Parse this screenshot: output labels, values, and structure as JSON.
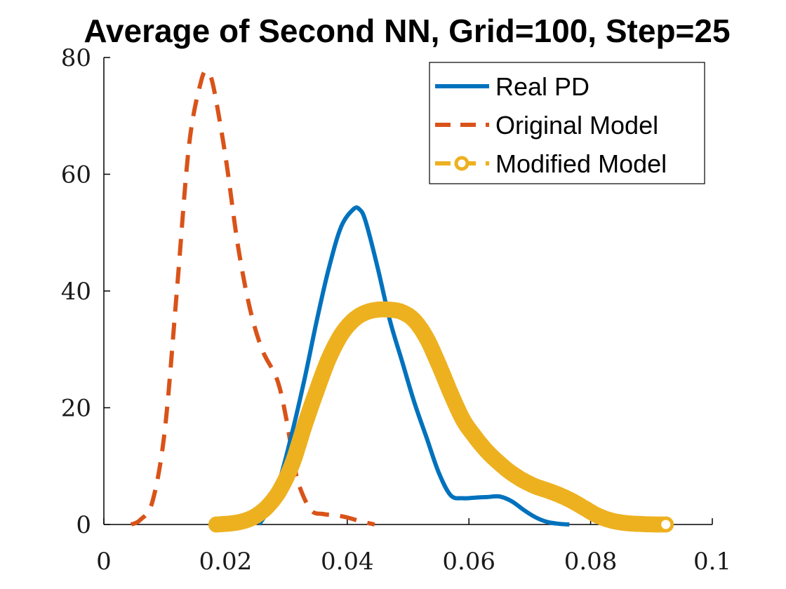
{
  "chart_data": {
    "type": "line",
    "title": "Average of Second NN, Grid=100, Step=25",
    "xlabel": "",
    "ylabel": "",
    "xlim": [
      0,
      0.1
    ],
    "ylim": [
      0,
      80
    ],
    "x_ticks": [
      0,
      0.02,
      0.04,
      0.06,
      0.08,
      0.1
    ],
    "x_tick_labels": [
      "0",
      "0.02",
      "0.04",
      "0.06",
      "0.08",
      "0.1"
    ],
    "y_ticks": [
      0,
      20,
      40,
      60,
      80
    ],
    "y_tick_labels": [
      "0",
      "20",
      "40",
      "60",
      "80"
    ],
    "grid": false,
    "legend_position": "top-right",
    "series": [
      {
        "name": "Real PD",
        "color": "#0072BD",
        "style": "solid",
        "x": [
          0.0255,
          0.027,
          0.029,
          0.031,
          0.033,
          0.035,
          0.037,
          0.039,
          0.041,
          0.042,
          0.043,
          0.045,
          0.047,
          0.049,
          0.051,
          0.053,
          0.055,
          0.057,
          0.059,
          0.061,
          0.063,
          0.065,
          0.067,
          0.069,
          0.071,
          0.073,
          0.075,
          0.0765
        ],
        "y": [
          0,
          2.5,
          8,
          16,
          25,
          35,
          44,
          51,
          54,
          54,
          52,
          44,
          35,
          28,
          21,
          15,
          9,
          5,
          4.5,
          4.6,
          4.7,
          4.8,
          4,
          2.5,
          1.2,
          0.4,
          0.1,
          0
        ]
      },
      {
        "name": "Original Model",
        "color": "#D95319",
        "style": "dashed",
        "x": [
          0.0045,
          0.006,
          0.008,
          0.01,
          0.012,
          0.014,
          0.016,
          0.017,
          0.018,
          0.02,
          0.022,
          0.024,
          0.026,
          0.028,
          0.029,
          0.03,
          0.031,
          0.032,
          0.034,
          0.036,
          0.038,
          0.04,
          0.042,
          0.0445
        ],
        "y": [
          0,
          0.8,
          4,
          16,
          40,
          65,
          76,
          77.5,
          75,
          63,
          48,
          37,
          30,
          26,
          23,
          18,
          12,
          7,
          2.5,
          1.8,
          1.6,
          1.2,
          0.6,
          0
        ]
      },
      {
        "name": "Modified Model",
        "color": "#EDB120",
        "style": "dash-circle",
        "x": [
          0.0185,
          0.021,
          0.023,
          0.025,
          0.027,
          0.029,
          0.031,
          0.033,
          0.035,
          0.037,
          0.039,
          0.041,
          0.043,
          0.045,
          0.047,
          0.049,
          0.051,
          0.053,
          0.055,
          0.057,
          0.059,
          0.061,
          0.063,
          0.065,
          0.067,
          0.069,
          0.071,
          0.073,
          0.075,
          0.077,
          0.079,
          0.081,
          0.083,
          0.085,
          0.087,
          0.089,
          0.091,
          0.0925
        ],
        "y": [
          0,
          0.2,
          0.6,
          1.5,
          3.2,
          6,
          10.5,
          17,
          23,
          28.5,
          32.5,
          35,
          36.3,
          36.8,
          36.8,
          36.4,
          35,
          32,
          27.5,
          22.5,
          18,
          15,
          12.5,
          10.5,
          8.8,
          7.5,
          6.5,
          5.8,
          5,
          4,
          2.8,
          1.6,
          0.8,
          0.35,
          0.15,
          0.05,
          0,
          0
        ]
      }
    ]
  }
}
